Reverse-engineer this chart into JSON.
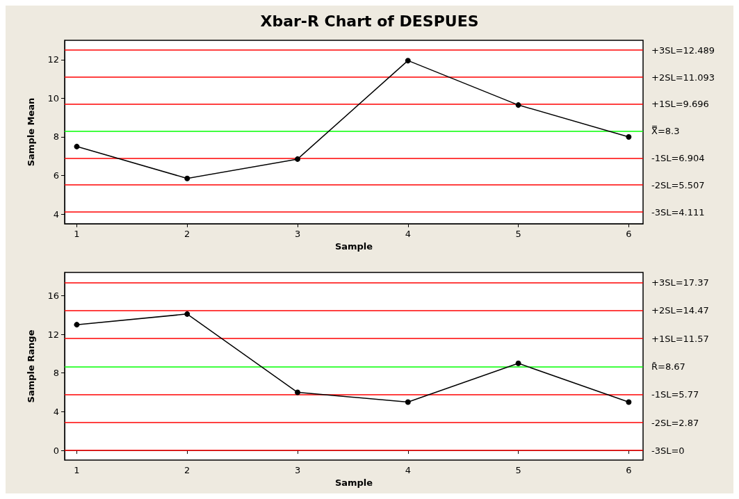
{
  "chart_data": [
    {
      "type": "line",
      "title": "Xbar-R Chart of DESPUES",
      "xlabel": "Sample",
      "ylabel": "Sample Mean",
      "x": [
        1,
        2,
        3,
        4,
        5,
        6
      ],
      "series": [
        {
          "color": "#000000",
          "values": [
            7.5,
            5.85,
            6.85,
            11.95,
            9.65,
            8.0
          ]
        }
      ],
      "xlim": [
        0.89,
        6.13
      ],
      "xticks": [
        1,
        2,
        3,
        4,
        5,
        6
      ],
      "ylim": [
        3.5,
        13
      ],
      "yticks": [
        4,
        6,
        8,
        10,
        12
      ],
      "ref_lines": [
        {
          "axis": "y",
          "value": 12.489,
          "label": "+3SL=12.489",
          "color": "#ff0000"
        },
        {
          "axis": "y",
          "value": 11.093,
          "label": "+2SL=11.093",
          "color": "#ff0000"
        },
        {
          "axis": "y",
          "value": 9.696,
          "label": "+1SL=9.696",
          "color": "#ff0000"
        },
        {
          "axis": "y",
          "value": 8.3,
          "label": "X̿=8.3",
          "color": "#00ff00"
        },
        {
          "axis": "y",
          "value": 6.904,
          "label": "-1SL=6.904",
          "color": "#ff0000"
        },
        {
          "axis": "y",
          "value": 5.507,
          "label": "-2SL=5.507",
          "color": "#ff0000"
        },
        {
          "axis": "y",
          "value": 4.111,
          "label": "-3SL=4.111",
          "color": "#ff0000"
        }
      ],
      "grid": false,
      "marker": "circle",
      "line_style": "solid"
    },
    {
      "type": "line",
      "xlabel": "Sample",
      "ylabel": "Sample Range",
      "x": [
        1,
        2,
        3,
        4,
        5,
        6
      ],
      "series": [
        {
          "color": "#000000",
          "values": [
            13.0,
            14.1,
            6.0,
            5.0,
            9.0,
            5.0
          ]
        }
      ],
      "xlim": [
        0.89,
        6.13
      ],
      "xticks": [
        1,
        2,
        3,
        4,
        5,
        6
      ],
      "ylim": [
        -1,
        18.4
      ],
      "yticks": [
        0,
        4,
        8,
        12,
        16
      ],
      "ref_lines": [
        {
          "axis": "y",
          "value": 17.37,
          "label": "+3SL=17.37",
          "color": "#ff0000"
        },
        {
          "axis": "y",
          "value": 14.47,
          "label": "+2SL=14.47",
          "color": "#ff0000"
        },
        {
          "axis": "y",
          "value": 11.57,
          "label": "+1SL=11.57",
          "color": "#ff0000"
        },
        {
          "axis": "y",
          "value": 8.67,
          "label": "R̄=8.67",
          "color": "#00ff00"
        },
        {
          "axis": "y",
          "value": 5.77,
          "label": "-1SL=5.77",
          "color": "#ff0000"
        },
        {
          "axis": "y",
          "value": 2.87,
          "label": "-2SL=2.87",
          "color": "#ff0000"
        },
        {
          "axis": "y",
          "value": 0,
          "label": "-3SL=0",
          "color": "#ff0000"
        }
      ],
      "grid": false,
      "marker": "circle",
      "line_style": "solid"
    }
  ]
}
